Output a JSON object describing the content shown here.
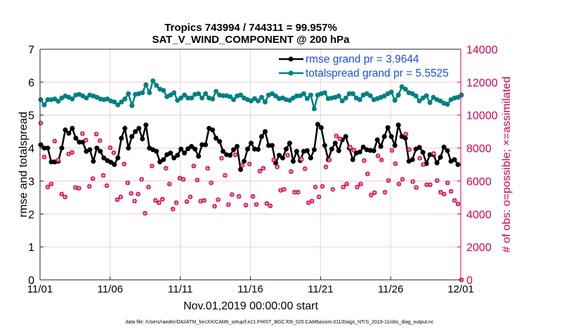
{
  "chart_data": {
    "type": "line",
    "title": [
      "Tropics 743994 / 744311 = 99.957%",
      "SAT_V_WIND_COMPONENT @ 200 hPa"
    ],
    "xlabel": "Nov.01,2019 00:00:00 start",
    "ylabel": "rmse and totalspread",
    "ylabel_right": "# of obs: o=possible; ×=assimilated",
    "x_tick_labels": [
      "11/01",
      "11/06",
      "11/11",
      "11/16",
      "11/21",
      "11/26",
      "12/01"
    ],
    "x_range": [
      "11/01",
      "12/01"
    ],
    "ylim": [
      0,
      7
    ],
    "y_ticks": [
      0,
      1,
      2,
      3,
      4,
      5,
      6,
      7
    ],
    "ylim_right": [
      0,
      14000
    ],
    "y_ticks_right": [
      0,
      2000,
      4000,
      6000,
      8000,
      10000,
      12000,
      14000
    ],
    "grid": true,
    "legend_placement": "top-right",
    "legend_text_color": "#1a4cf5",
    "footnote": "data file: /Users/raeder/DAI/ATM_forcXX/CAM6_setup/f.e21.FHIST_BGC.f09_025.CAM6assim.011/Diags_NTrS_2019-11/obs_diag_output.nc",
    "series": [
      {
        "name": "rmse grand pr = 3.9644",
        "axis": "left",
        "color": "#000000",
        "marker": "asterisk",
        "values": [
          4.1,
          4.0,
          4.0,
          3.58,
          3.58,
          3.6,
          4.0,
          4.55,
          4.45,
          4.6,
          4.3,
          4.18,
          4.18,
          3.9,
          3.95,
          3.6,
          4.0,
          3.9,
          3.7,
          3.62,
          3.57,
          3.5,
          3.7,
          4.3,
          4.6,
          4.0,
          4.35,
          4.5,
          4.6,
          4.28,
          4.7,
          4.0,
          3.95,
          3.9,
          3.58,
          3.65,
          3.8,
          3.85,
          3.7,
          3.78,
          3.97,
          3.85,
          3.98,
          4.05,
          3.97,
          3.75,
          4.1,
          4.1,
          4.6,
          4.55,
          4.3,
          4.2,
          3.9,
          3.8,
          3.78,
          3.95,
          4.05,
          3.35,
          3.6,
          3.97,
          4.15,
          3.97,
          3.96,
          4.35,
          4.5,
          4.08,
          4.08,
          3.55,
          3.78,
          3.7,
          3.97,
          4.15,
          3.6,
          3.9,
          3.62,
          3.9,
          3.92,
          3.7,
          3.95,
          4.72,
          4.62,
          4.08,
          3.65,
          3.97,
          4.15,
          3.92,
          4.25,
          4.35,
          4.0,
          3.65,
          3.85,
          3.88,
          4.03,
          3.95,
          3.93,
          3.92,
          4.25,
          4.05,
          4.35,
          4.62,
          4.35,
          4.08,
          4.7,
          4.35,
          4.3,
          3.6,
          3.65,
          3.97,
          4.02,
          3.87,
          3.53,
          3.8,
          3.8,
          3.55,
          3.72,
          4.03,
          3.92,
          3.6,
          3.65,
          3.5
        ]
      },
      {
        "name": "totalspread grand pr = 5.5525",
        "axis": "left",
        "color": "#008080",
        "marker": "dot",
        "values": [
          5.47,
          5.31,
          5.47,
          5.47,
          5.49,
          5.42,
          5.52,
          5.58,
          5.54,
          5.49,
          5.61,
          5.63,
          5.58,
          5.52,
          5.61,
          5.58,
          5.54,
          5.49,
          5.47,
          5.49,
          5.43,
          5.4,
          5.31,
          5.4,
          5.49,
          5.65,
          5.29,
          5.63,
          5.65,
          5.68,
          5.92,
          5.68,
          6.04,
          5.9,
          5.79,
          5.75,
          5.56,
          5.61,
          5.68,
          5.45,
          5.52,
          5.61,
          5.52,
          5.52,
          5.63,
          5.65,
          5.52,
          5.65,
          5.52,
          5.49,
          5.72,
          5.61,
          5.59,
          5.59,
          5.56,
          5.47,
          5.58,
          5.61,
          5.52,
          5.47,
          5.43,
          5.5,
          5.43,
          5.54,
          5.4,
          5.61,
          5.65,
          5.58,
          5.5,
          5.52,
          5.47,
          5.45,
          5.52,
          5.58,
          5.59,
          5.65,
          5.5,
          5.61,
          5.19,
          5.61,
          5.65,
          5.68,
          5.5,
          5.52,
          5.54,
          5.58,
          5.43,
          5.52,
          5.65,
          5.65,
          5.52,
          5.47,
          5.61,
          5.65,
          5.59,
          5.47,
          5.5,
          5.54,
          5.58,
          5.65,
          5.7,
          5.45,
          5.61,
          5.86,
          5.79,
          5.68,
          5.65,
          5.58,
          5.43,
          5.52,
          5.59,
          5.38,
          5.54,
          5.47,
          5.43,
          5.36,
          5.33,
          5.47,
          5.52,
          5.54,
          5.61
        ]
      },
      {
        "name": "",
        "axis": "right",
        "color": "#d8004a",
        "marker": "circle-x",
        "values": [
          9518,
          7456,
          5634,
          5818,
          8421,
          7270,
          5207,
          5036,
          7640,
          7740,
          5605,
          5563,
          8878,
          8480,
          5676,
          6146,
          8850,
          8450,
          6344,
          5719,
          8024,
          7712,
          4866,
          5036,
          7029,
          5890,
          5250,
          4780,
          5207,
          6103,
          4042,
          5634,
          6914,
          4823,
          4681,
          4895,
          6773,
          5818,
          4297,
          4681,
          6175,
          6103,
          4752,
          5036,
          6914,
          6060,
          4780,
          4823,
          6773,
          5890,
          4468,
          4866,
          7384,
          6344,
          4567,
          5177,
          7597,
          5064,
          6957,
          4538,
          7029,
          5064,
          4578,
          6600,
          6773,
          4638,
          4497,
          7280,
          6856,
          5434,
          5491,
          7569,
          6574,
          5320,
          5320,
          7327,
          6745,
          4681,
          4780,
          5634,
          5036,
          5676,
          6856,
          7280,
          5491,
          8735,
          8565,
          5634,
          5818,
          8052,
          7882,
          5634,
          5818,
          7242,
          6431,
          5148,
          5292,
          7526,
          7280,
          5320,
          6032,
          7854,
          7057,
          5818,
          6103,
          8850,
          7910,
          5961,
          5605,
          7384,
          7000,
          5776,
          5776,
          7669,
          6032,
          5320,
          5207,
          5890,
          5377,
          4823,
          4610,
          0
        ]
      }
    ]
  }
}
